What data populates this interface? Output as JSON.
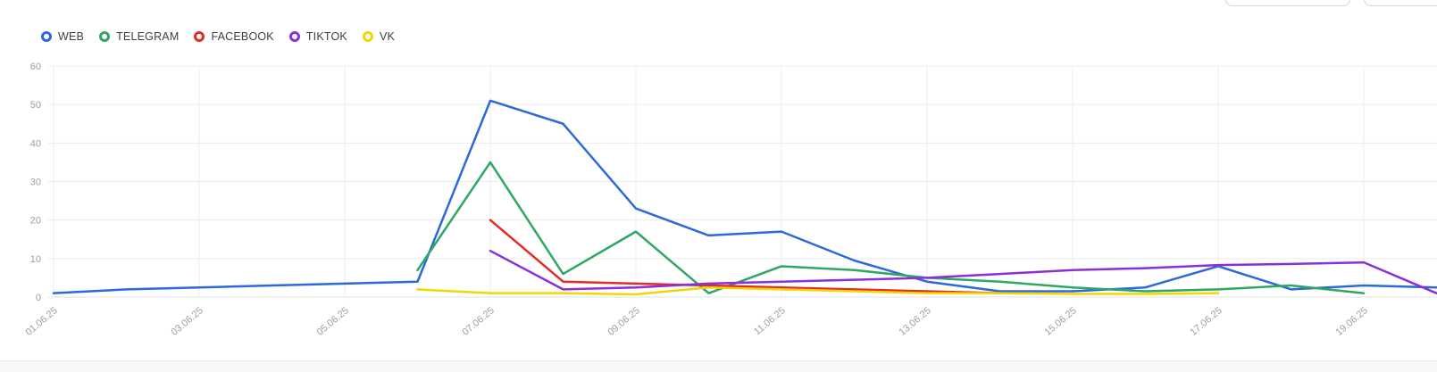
{
  "toolbar": {
    "inputs": [
      {
        "name": "toolbar-input-1",
        "value": "",
        "placeholder": ""
      },
      {
        "name": "toolbar-input-2",
        "value": "",
        "placeholder": ""
      }
    ]
  },
  "chart_data": {
    "type": "line",
    "title": "",
    "xlabel": "",
    "ylabel": "",
    "ylim": [
      0,
      60
    ],
    "y_ticks": [
      0,
      10,
      20,
      30,
      40,
      50,
      60
    ],
    "x_tick_step": 2,
    "grid": true,
    "legend_position": "top-left",
    "point_style": "none",
    "categories": [
      "01.06.25",
      "02.06.25",
      "03.06.25",
      "04.06.25",
      "05.06.25",
      "06.06.25",
      "07.06.25",
      "08.06.25",
      "09.06.25",
      "10.06.25",
      "11.06.25",
      "12.06.25",
      "13.06.25",
      "14.06.25",
      "15.06.25",
      "16.06.25",
      "17.06.25",
      "18.06.25",
      "19.06.25",
      "20.06.25"
    ],
    "series": [
      {
        "name": "WEB",
        "color": "#2d68dd",
        "start_index": 0,
        "values": [
          1,
          2,
          2.5,
          3,
          3.5,
          4,
          51,
          45,
          23,
          16,
          17,
          9.5,
          4,
          1.5,
          1.5,
          2.5,
          8,
          2,
          3,
          2.5
        ]
      },
      {
        "name": "TELEGRAM",
        "color": "#2ea765",
        "start_index": 5,
        "values": [
          7,
          35,
          6,
          17,
          1,
          8,
          7,
          5,
          4,
          2.5,
          1.5,
          2,
          3,
          1
        ]
      },
      {
        "name": "FACEBOOK",
        "color": "#e22d25",
        "start_index": 6,
        "values": [
          20,
          4,
          3.5,
          3,
          2.5,
          2,
          1.5,
          1
        ]
      },
      {
        "name": "TIKTOK",
        "color": "#8c2fd9",
        "start_index": 6,
        "values": [
          12,
          2,
          2.5,
          3.5,
          4,
          4.5,
          5,
          6,
          7,
          7.5,
          8.3,
          8.6,
          9,
          1
        ]
      },
      {
        "name": "VK",
        "color": "#f2d600",
        "start_index": 5,
        "values": [
          2,
          1,
          1,
          0.7,
          2.5,
          2,
          1.5,
          1,
          1,
          0.8,
          0.8,
          1
        ]
      }
    ],
    "colors": {
      "grid_line": "#ececec",
      "axis_line": "#e2e2e2",
      "axis_text": "#9aa0a6",
      "legend_text": "#3c4043"
    }
  }
}
